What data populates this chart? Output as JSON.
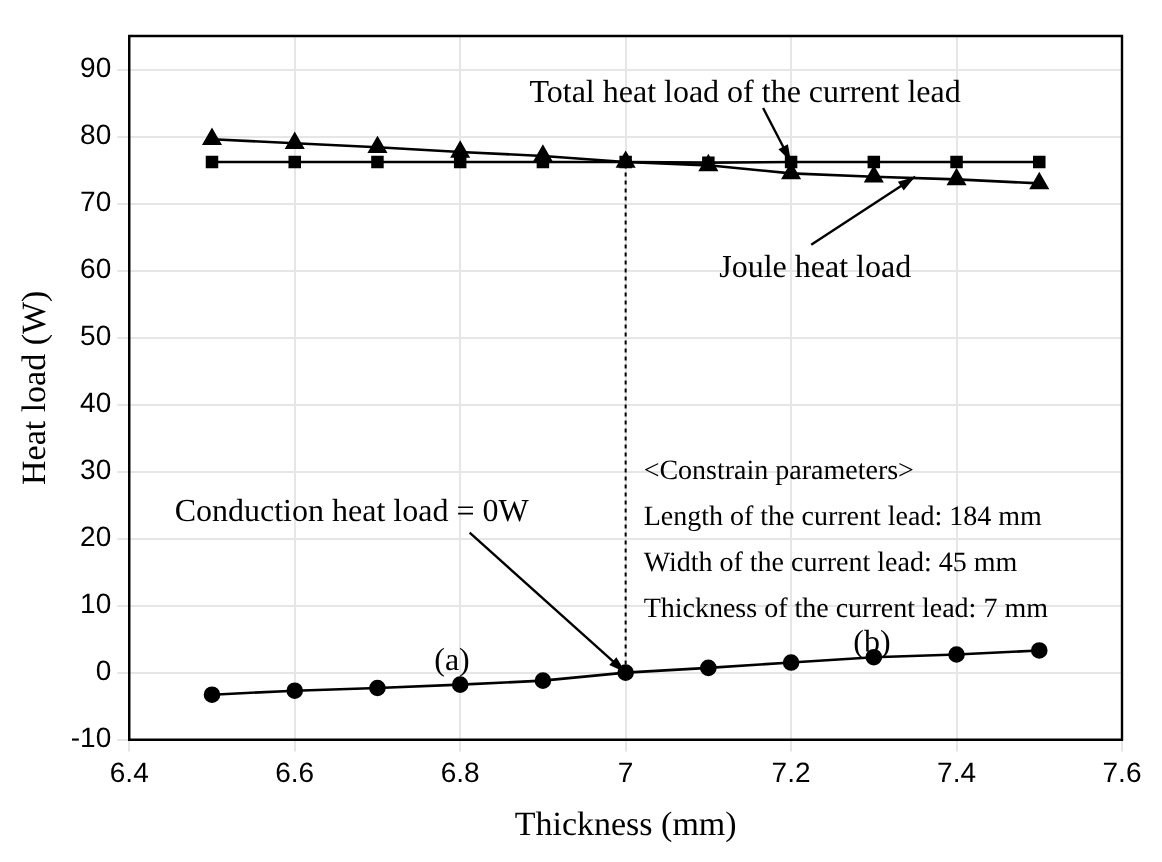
{
  "chart_data": {
    "type": "line",
    "xlabel": "Thickness (mm)",
    "ylabel": "Heat load (W)",
    "x": [
      6.5,
      6.6,
      6.7,
      6.8,
      6.9,
      7.0,
      7.1,
      7.2,
      7.3,
      7.4,
      7.5
    ],
    "series": [
      {
        "color": "#000000",
        "marker": "square",
        "values": [
          76.2,
          76.2,
          76.2,
          76.2,
          76.2,
          76.2,
          76.1,
          76.2,
          76.2,
          76.2,
          76.2
        ]
      },
      {
        "color": "#000000",
        "marker": "triangle",
        "values": [
          79.6,
          79.0,
          78.4,
          77.7,
          77.1,
          76.2,
          75.7,
          74.5,
          74.0,
          73.6,
          73.0
        ]
      },
      {
        "color": "#000000",
        "marker": "circle",
        "values": [
          -3.3,
          -2.7,
          -2.3,
          -1.8,
          -1.2,
          0,
          0.7,
          1.5,
          2.3,
          2.7,
          3.3
        ]
      },
      {
        "color": "#000000",
        "marker": "none",
        "line_style": "dotted",
        "x": [
          7.0,
          7.0
        ],
        "values": [
          0,
          76.2
        ]
      }
    ],
    "xlim": [
      6.4,
      7.6
    ],
    "xticks": [
      6.4,
      6.6,
      6.8,
      7.0,
      7.2,
      7.4,
      7.6
    ],
    "ylim": [
      -10,
      95
    ],
    "yticks": [
      -10,
      0,
      10,
      20,
      30,
      40,
      50,
      60,
      70,
      80,
      90
    ],
    "grid": true,
    "legend": false,
    "annotations": [
      {
        "text": "Total heat load of the current lead",
        "x": 7.2,
        "y": 76.2
      },
      {
        "text": "Joule heat load",
        "x": 7.35,
        "y": 74.0
      },
      {
        "text": "Conduction heat load = 0W",
        "x": 7.0,
        "y": 0
      },
      "(a)",
      "(b)",
      "<Constrain parameters>",
      "Length of the current lead: 184 mm",
      "Width of the current lead: 45 mm",
      "Thickness of the current lead: 7 mm"
    ]
  }
}
